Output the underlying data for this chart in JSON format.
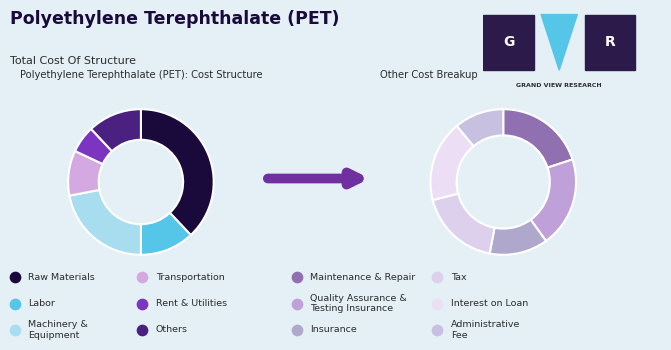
{
  "title": "Polyethylene Terephthalate (PET)",
  "subtitle": "Total Cost Of Structure",
  "bg_color": "#e4f0f6",
  "panel_bg": "#cce4f0",
  "left_label": "Polyethylene Terephthalate (PET): Cost Structure",
  "right_label": "Other Cost Breakup",
  "left_slices": [
    38,
    12,
    22,
    10,
    6,
    12
  ],
  "left_colors": [
    "#1a0a3c",
    "#55c5e8",
    "#a8ddf0",
    "#d4a8e0",
    "#7b35c0",
    "#4a2080"
  ],
  "left_legend": [
    "Raw Materials",
    "Labor",
    "Machinery &\nEquipment",
    "Transportation",
    "Rent & Utilities",
    "Others"
  ],
  "left_legend_colors": [
    "#1a0a3c",
    "#55c5e8",
    "#a8ddf0",
    "#d4a8e0",
    "#7b35c0",
    "#4a2080"
  ],
  "right_slices": [
    20,
    20,
    13,
    18,
    18,
    11
  ],
  "right_colors": [
    "#9070b0",
    "#c0a0d8",
    "#b0a8cc",
    "#dcd0ec",
    "#ecdff5",
    "#c8c0e0"
  ],
  "right_legend": [
    "Maintenance & Repair",
    "Quality Assurance &\nTesting Insurance",
    "Insurance",
    "Tax",
    "Interest on Loan",
    "Administrative\nFee"
  ],
  "right_legend_colors": [
    "#9070b0",
    "#c0a0d8",
    "#b0a8cc",
    "#dcd0ec",
    "#ecdff5",
    "#c8c0e0"
  ],
  "arrow_color": "#7030a0",
  "text_color": "#2c2c2c",
  "title_color": "#1a0a3c",
  "logo_bg": "#2c1a4a",
  "logo_text_color": "#ffffff",
  "border_color": "#b0ccd8"
}
